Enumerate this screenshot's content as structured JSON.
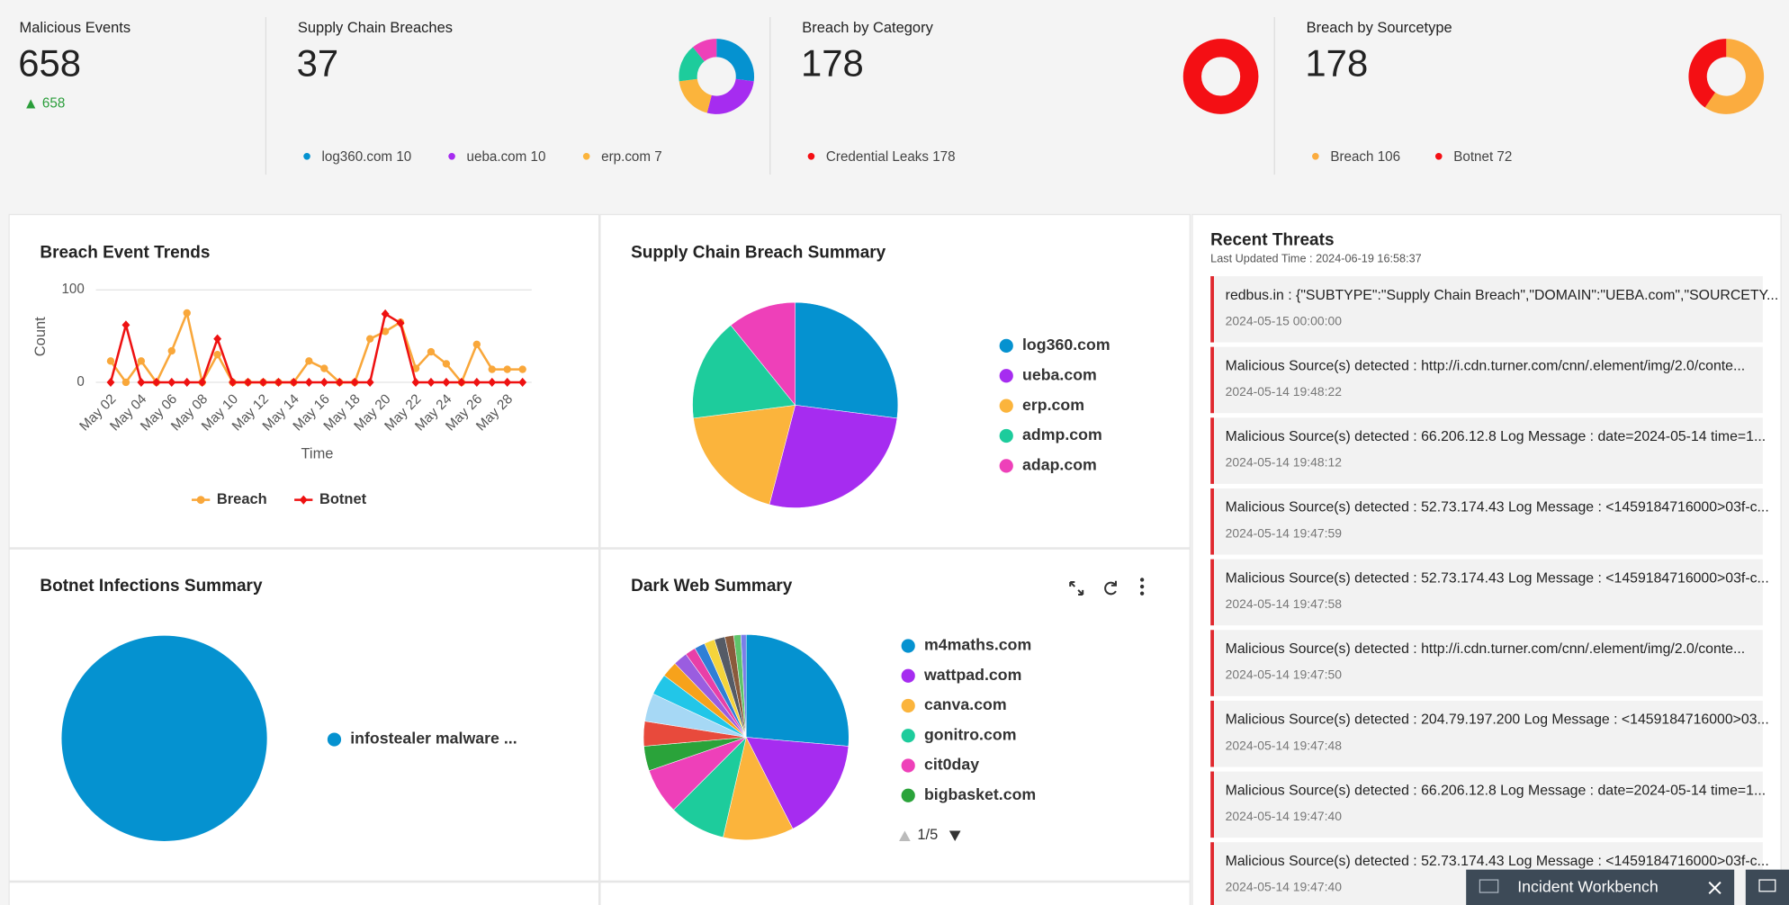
{
  "kpis": [
    {
      "title": "Malicious Events",
      "value": 658,
      "change": 658
    },
    {
      "title": "Supply Chain Breaches",
      "value": 37
    },
    {
      "title": "Breach by Category",
      "value": 178
    },
    {
      "title": "Breach by Sourcetype",
      "value": 178
    }
  ],
  "chart_data": [
    {
      "type": "line",
      "title": "Breach Event Trends",
      "x_label": "Time",
      "y_label": "Count",
      "categories": [
        "May 02",
        null,
        "May 04",
        null,
        "May 06",
        null,
        "May 08",
        null,
        "May 10",
        null,
        "May 12",
        null,
        "May 14",
        null,
        "May 16",
        null,
        "May 18",
        null,
        "May 20",
        null,
        "May 22",
        null,
        "May 24",
        null,
        "May 26",
        null,
        "May 28",
        null
      ],
      "ylim": [
        0,
        100
      ],
      "yticks": [
        0,
        100
      ],
      "grid": true,
      "legend": "bottom",
      "series": [
        {
          "name": "Breach",
          "color": "#f9a73a",
          "values": [
            23,
            0,
            23,
            0,
            34,
            75,
            0,
            30,
            0,
            0,
            0,
            0,
            0,
            23,
            15,
            0,
            0,
            47,
            55,
            65,
            15,
            33,
            20,
            0,
            41,
            14,
            14,
            14
          ]
        },
        {
          "name": "Botnet",
          "color": "#ee1111",
          "values": [
            0,
            62,
            0,
            0,
            0,
            0,
            0,
            47,
            0,
            0,
            0,
            0,
            0,
            0,
            0,
            0,
            0,
            0,
            74,
            64,
            0,
            0,
            0,
            0,
            0,
            0,
            0,
            0
          ]
        }
      ]
    },
    {
      "type": "pie",
      "title": "Supply Chain Breach Summary",
      "categories": [
        "log360.com",
        "ueba.com",
        "erp.com",
        "admp.com",
        "adap.com"
      ],
      "values": [
        10,
        10,
        7,
        6,
        4
      ],
      "colors": [
        "#0592d0",
        "#a62cf0",
        "#fbb43c",
        "#1dcc9c",
        "#ee40b9"
      ]
    },
    {
      "type": "pie",
      "title": "Botnet Infections Summary",
      "categories": [
        "infostealer malware ..."
      ],
      "values": [
        72
      ],
      "colors": [
        "#0592d0"
      ]
    },
    {
      "type": "pie",
      "title": "Dark Web Summary",
      "categories": [
        "m4maths.com",
        "wattpad.com",
        "canva.com",
        "gonitro.com",
        "cit0day",
        "bigbasket.com",
        null,
        null,
        null,
        null,
        null,
        null,
        null,
        null,
        null,
        null,
        null,
        null
      ],
      "values": [
        95,
        58,
        40,
        32,
        26,
        14,
        14,
        16,
        12,
        9,
        8,
        6,
        6,
        6,
        6,
        5,
        4,
        3
      ],
      "colors": [
        "#0592d0",
        "#a62cf0",
        "#fbb43c",
        "#1dcc9c",
        "#ee40b9",
        "#2aa33a",
        "#e84a3c",
        "#a6d8f5",
        "#22c6e8",
        "#f7a21b",
        "#9a5de0",
        "#e83fa8",
        "#2f7fd6",
        "#f5d43b",
        "#555b66",
        "#8a5a3c",
        "#5fc46b",
        "#7a7fe8"
      ],
      "legend_page": "1/5"
    },
    {
      "type": "donut",
      "categories": [
        "Credential Leaks"
      ],
      "values": [
        178
      ],
      "colors": [
        "#f40f14"
      ]
    },
    {
      "type": "donut",
      "categories": [
        "Breach",
        "Botnet"
      ],
      "values": [
        106,
        72
      ],
      "colors": [
        "#fbac3f",
        "#f40f14"
      ]
    }
  ],
  "recent_threats": {
    "title": "Recent Threats",
    "last_updated": "Last Updated Time : 2024-06-19 16:58:37",
    "items": [
      {
        "message": "redbus.in : {\"SUBTYPE\":\"Supply Chain Breach\",\"DOMAIN\":\"UEBA.com\",\"SOURCETY...",
        "time": "2024-05-15 00:00:00"
      },
      {
        "message": "Malicious Source(s) detected : http://i.cdn.turner.com/cnn/.element/img/2.0/conte...",
        "time": "2024-05-14 19:48:22"
      },
      {
        "message": "Malicious Source(s) detected : 66.206.12.8 Log Message : date=2024-05-14 time=1...",
        "time": "2024-05-14 19:48:12"
      },
      {
        "message": "Malicious Source(s) detected : 52.73.174.43 Log Message : <1459184716000>03f-c...",
        "time": "2024-05-14 19:47:59"
      },
      {
        "message": "Malicious Source(s) detected : 52.73.174.43 Log Message : <1459184716000>03f-c...",
        "time": "2024-05-14 19:47:58"
      },
      {
        "message": "Malicious Source(s) detected : http://i.cdn.turner.com/cnn/.element/img/2.0/conte...",
        "time": "2024-05-14 19:47:50"
      },
      {
        "message": "Malicious Source(s) detected : 204.79.197.200 Log Message : <1459184716000>03...",
        "time": "2024-05-14 19:47:48"
      },
      {
        "message": "Malicious Source(s) detected : 66.206.12.8 Log Message : date=2024-05-14 time=1...",
        "time": "2024-05-14 19:47:40"
      },
      {
        "message": "Malicious Source(s) detected : 52.73.174.43 Log Message : <1459184716000>03f-c...",
        "time": "2024-05-14 19:47:40"
      }
    ]
  },
  "incident_workbench": "Incident Workbench"
}
